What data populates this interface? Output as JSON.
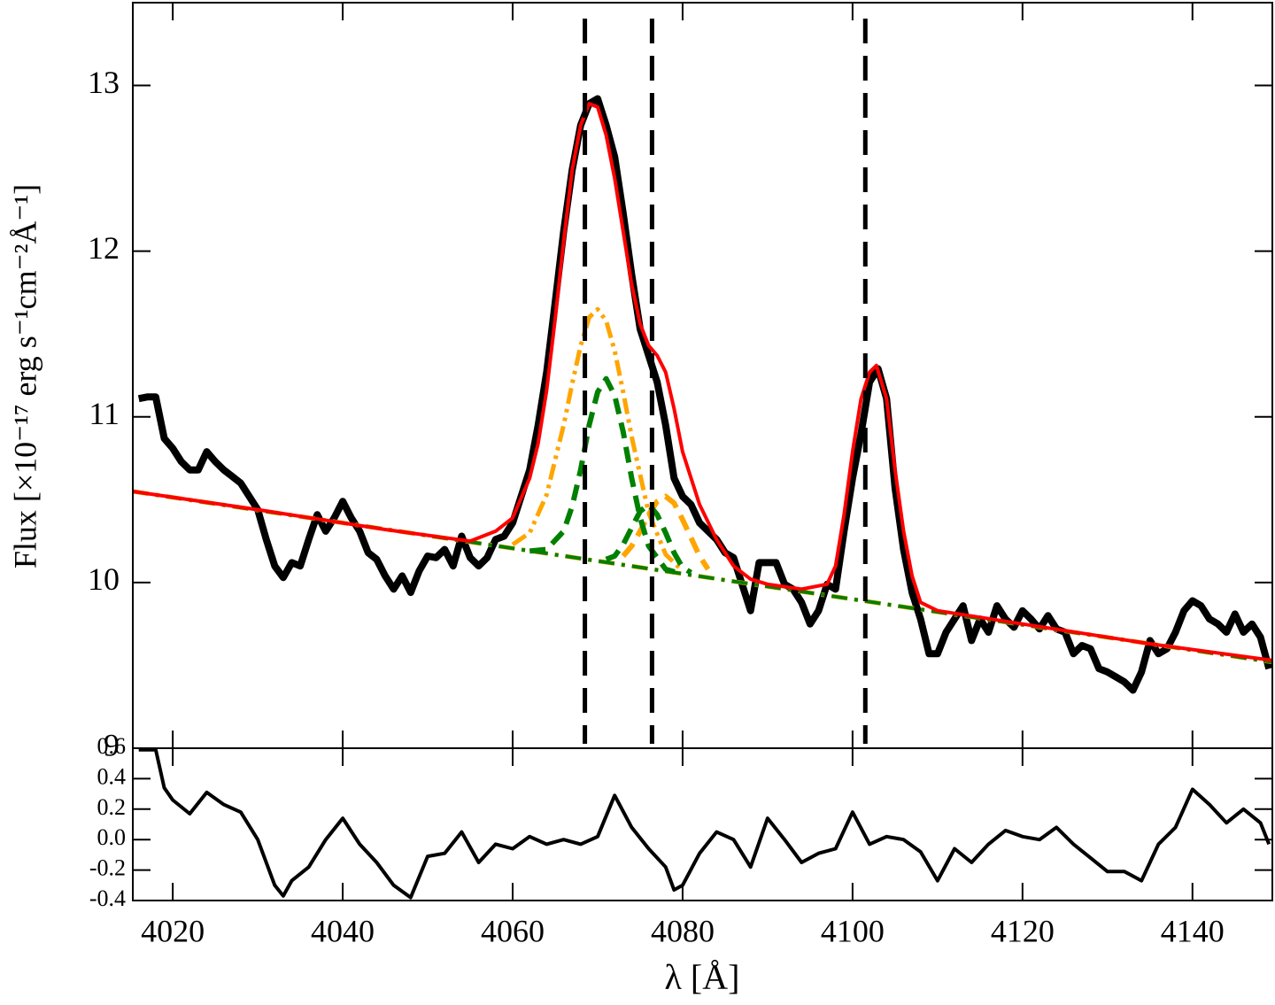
{
  "chart_data": [
    {
      "type": "line",
      "ylabel": "Flux [×10⁻¹⁷ erg s⁻¹cm⁻²Å⁻¹]",
      "xlim": [
        4015.3,
        4149.4
      ],
      "ylim": [
        9,
        13.5
      ],
      "xticks": [
        4020,
        4040,
        4060,
        4080,
        4100,
        4120,
        4140
      ],
      "xticklabels": false,
      "yticks": [
        9,
        10,
        11,
        12,
        13
      ],
      "vlines": [
        4068.5,
        4076.4,
        4101.5
      ],
      "vline_color": "#000000",
      "series": [
        {
          "color": "#000000",
          "dash": "solid",
          "width": 8,
          "x": [
            4016,
            4017,
            4018,
            4019,
            4020,
            4021,
            4022,
            4023,
            4024,
            4025,
            4026,
            4027,
            4028,
            4029,
            4030,
            4031,
            4032,
            4033,
            4034,
            4035,
            4036,
            4037,
            4038,
            4039,
            4040,
            4041,
            4042,
            4043,
            4044,
            4045,
            4046,
            4047,
            4048,
            4049,
            4050,
            4051,
            4052,
            4053,
            4054,
            4055,
            4056,
            4057,
            4058,
            4059,
            4060,
            4061,
            4062,
            4063,
            4064,
            4065,
            4066,
            4067,
            4068,
            4069,
            4070,
            4071,
            4072,
            4073,
            4074,
            4075,
            4076,
            4077,
            4078,
            4079,
            4080,
            4081,
            4082,
            4083,
            4084,
            4085,
            4086,
            4087,
            4088,
            4089,
            4090,
            4091,
            4092,
            4093,
            4094,
            4095,
            4096,
            4097,
            4098,
            4099,
            4100,
            4101,
            4102,
            4103,
            4104,
            4105,
            4106,
            4107,
            4108,
            4109,
            4110,
            4111,
            4112,
            4113,
            4114,
            4115,
            4116,
            4117,
            4118,
            4119,
            4120,
            4121,
            4122,
            4123,
            4124,
            4125,
            4126,
            4127,
            4128,
            4129,
            4130,
            4131,
            4132,
            4133,
            4134,
            4135,
            4136,
            4137,
            4138,
            4139,
            4140,
            4141,
            4142,
            4143,
            4144,
            4145,
            4146,
            4147,
            4148,
            4149
          ],
          "values": [
            11.11,
            11.12,
            11.12,
            10.87,
            10.81,
            10.73,
            10.68,
            10.68,
            10.79,
            10.73,
            10.68,
            10.64,
            10.6,
            10.52,
            10.44,
            10.26,
            10.1,
            10.03,
            10.12,
            10.1,
            10.26,
            10.41,
            10.31,
            10.39,
            10.49,
            10.39,
            10.31,
            10.18,
            10.14,
            10.04,
            9.96,
            10.04,
            9.94,
            10.07,
            10.16,
            10.15,
            10.2,
            10.1,
            10.28,
            10.15,
            10.1,
            10.15,
            10.26,
            10.28,
            10.36,
            10.52,
            10.68,
            10.95,
            11.27,
            11.69,
            12.12,
            12.49,
            12.76,
            12.89,
            12.92,
            12.76,
            12.57,
            12.23,
            11.86,
            11.53,
            11.37,
            11.21,
            10.95,
            10.63,
            10.52,
            10.47,
            10.36,
            10.31,
            10.26,
            10.18,
            10.15,
            9.99,
            9.83,
            10.12,
            10.12,
            10.12,
            9.99,
            9.96,
            9.88,
            9.75,
            9.83,
            9.99,
            9.96,
            10.31,
            10.63,
            10.9,
            11.21,
            11.29,
            11.11,
            10.57,
            10.2,
            9.94,
            9.78,
            9.57,
            9.57,
            9.7,
            9.78,
            9.86,
            9.65,
            9.78,
            9.7,
            9.86,
            9.78,
            9.73,
            9.83,
            9.78,
            9.72,
            9.8,
            9.72,
            9.7,
            9.57,
            9.62,
            9.6,
            9.48,
            9.46,
            9.43,
            9.4,
            9.35,
            9.46,
            9.65,
            9.57,
            9.6,
            9.7,
            9.83,
            9.89,
            9.86,
            9.78,
            9.75,
            9.7,
            9.81,
            9.7,
            9.75,
            9.67,
            9.48
          ]
        },
        {
          "color": "#ffa500",
          "dash": "dashdot",
          "width": 5,
          "x": [
            4015.3,
            4149.4
          ],
          "values": [
            10.55,
            9.52
          ]
        },
        {
          "color": "#008000",
          "dash": "dashdot",
          "width": 4,
          "x": [
            4015.3,
            4149.4
          ],
          "values": [
            10.55,
            9.52
          ]
        },
        {
          "color": "#ffa500",
          "dash": "dashdotdot",
          "width": 5,
          "x": [
            4060,
            4062,
            4064,
            4066,
            4067,
            4068,
            4069,
            4070,
            4071,
            4072,
            4073,
            4074,
            4076,
            4078,
            4080
          ],
          "values": [
            10.23,
            10.3,
            10.53,
            10.95,
            11.2,
            11.43,
            11.6,
            11.65,
            11.58,
            11.4,
            11.15,
            10.88,
            10.42,
            10.17,
            10.07
          ]
        },
        {
          "color": "#ffa500",
          "dash": "dashed",
          "width": 6,
          "x": [
            4073,
            4074,
            4075,
            4076,
            4077,
            4078,
            4079,
            4080,
            4081,
            4082,
            4083
          ],
          "values": [
            10.16,
            10.22,
            10.31,
            10.41,
            10.49,
            10.52,
            10.48,
            10.38,
            10.27,
            10.16,
            10.08
          ]
        },
        {
          "color": "#008000",
          "dash": "dashed",
          "width": 6,
          "x": [
            4062,
            4064,
            4066,
            4067,
            4068,
            4069,
            4070,
            4071,
            4072,
            4073,
            4074,
            4075,
            4076,
            4078,
            4080
          ],
          "values": [
            10.19,
            10.2,
            10.31,
            10.46,
            10.68,
            10.95,
            11.15,
            11.23,
            11.13,
            10.91,
            10.63,
            10.39,
            10.22,
            10.08,
            10.05
          ]
        },
        {
          "color": "#008000",
          "dash": "dashed",
          "width": 6,
          "x": [
            4071,
            4072,
            4073,
            4074,
            4075,
            4076,
            4077,
            4078,
            4079,
            4080,
            4081
          ],
          "values": [
            10.14,
            10.16,
            10.23,
            10.33,
            10.43,
            10.47,
            10.41,
            10.3,
            10.18,
            10.09,
            10.06
          ]
        },
        {
          "color": "#ff0000",
          "dash": "solid",
          "width": 4,
          "x": [
            4015.3,
            4030,
            4045,
            4055,
            4058,
            4060,
            4062,
            4063,
            4064,
            4065,
            4066,
            4067,
            4068,
            4069,
            4070,
            4071,
            4072,
            4073,
            4074,
            4075,
            4076,
            4077,
            4078,
            4079,
            4080,
            4082,
            4084,
            4086,
            4088,
            4090,
            4094,
            4097,
            4098,
            4099,
            4100,
            4101,
            4102,
            4102.8,
            4104,
            4105,
            4106,
            4107,
            4108,
            4110,
            4120,
            4135,
            4149.4
          ],
          "values": [
            10.55,
            10.44,
            10.32,
            10.25,
            10.31,
            10.39,
            10.63,
            10.84,
            11.16,
            11.59,
            12.06,
            12.49,
            12.76,
            12.89,
            12.87,
            12.7,
            12.44,
            12.12,
            11.8,
            11.56,
            11.43,
            11.37,
            11.27,
            11.05,
            10.79,
            10.47,
            10.26,
            10.1,
            10.02,
            9.99,
            9.96,
            9.99,
            10.1,
            10.41,
            10.79,
            11.11,
            11.27,
            11.31,
            11.11,
            10.68,
            10.31,
            10.04,
            9.88,
            9.83,
            9.75,
            9.63,
            9.53
          ]
        }
      ]
    },
    {
      "type": "line",
      "xlabel": "λ [Å]",
      "xlim": [
        4015.3,
        4149.4
      ],
      "ylim": [
        -0.4,
        0.6
      ],
      "xticks": [
        4020,
        4040,
        4060,
        4080,
        4100,
        4120,
        4140
      ],
      "xticklabels": true,
      "yticks": [
        {
          "value": -0.4,
          "label": "-0.4"
        },
        {
          "value": -0.2,
          "label": "-0.2"
        },
        {
          "value": 0,
          "label": "0.0"
        },
        0.2,
        0.4,
        0.6
      ],
      "series": [
        {
          "color": "#000000",
          "dash": "solid",
          "width": 4,
          "x": [
            4016,
            4018,
            4019,
            4020,
            4022,
            4024,
            4026,
            4028,
            4030,
            4032,
            4033,
            4034,
            4036,
            4038,
            4040,
            4042,
            4044,
            4046,
            4048,
            4050,
            4052,
            4054,
            4056,
            4058,
            4060,
            4062,
            4064,
            4066,
            4068,
            4070,
            4072,
            4074,
            4076,
            4078,
            4079,
            4080,
            4082,
            4084,
            4086,
            4088,
            4090,
            4092,
            4094,
            4096,
            4098,
            4100,
            4102,
            4104,
            4106,
            4108,
            4110,
            4112,
            4114,
            4116,
            4118,
            4120,
            4122,
            4124,
            4126,
            4128,
            4130,
            4132,
            4134,
            4136,
            4138,
            4140,
            4142,
            4144,
            4146,
            4148,
            4149
          ],
          "values": [
            0.59,
            0.59,
            0.34,
            0.26,
            0.17,
            0.31,
            0.23,
            0.18,
            0.0,
            -0.3,
            -0.37,
            -0.27,
            -0.18,
            0.0,
            0.14,
            -0.03,
            -0.15,
            -0.3,
            -0.38,
            -0.11,
            -0.09,
            0.05,
            -0.15,
            -0.03,
            -0.06,
            0.02,
            -0.03,
            0.0,
            -0.03,
            0.02,
            0.29,
            0.08,
            -0.06,
            -0.18,
            -0.33,
            -0.3,
            -0.09,
            0.05,
            0.0,
            -0.18,
            0.14,
            0.0,
            -0.15,
            -0.09,
            -0.06,
            0.18,
            -0.03,
            0.02,
            0.0,
            -0.08,
            -0.27,
            -0.06,
            -0.15,
            -0.03,
            0.06,
            0.02,
            0.0,
            0.08,
            -0.03,
            -0.12,
            -0.21,
            -0.21,
            -0.27,
            -0.03,
            0.08,
            0.33,
            0.23,
            0.11,
            0.2,
            0.11,
            -0.03
          ]
        }
      ]
    }
  ]
}
